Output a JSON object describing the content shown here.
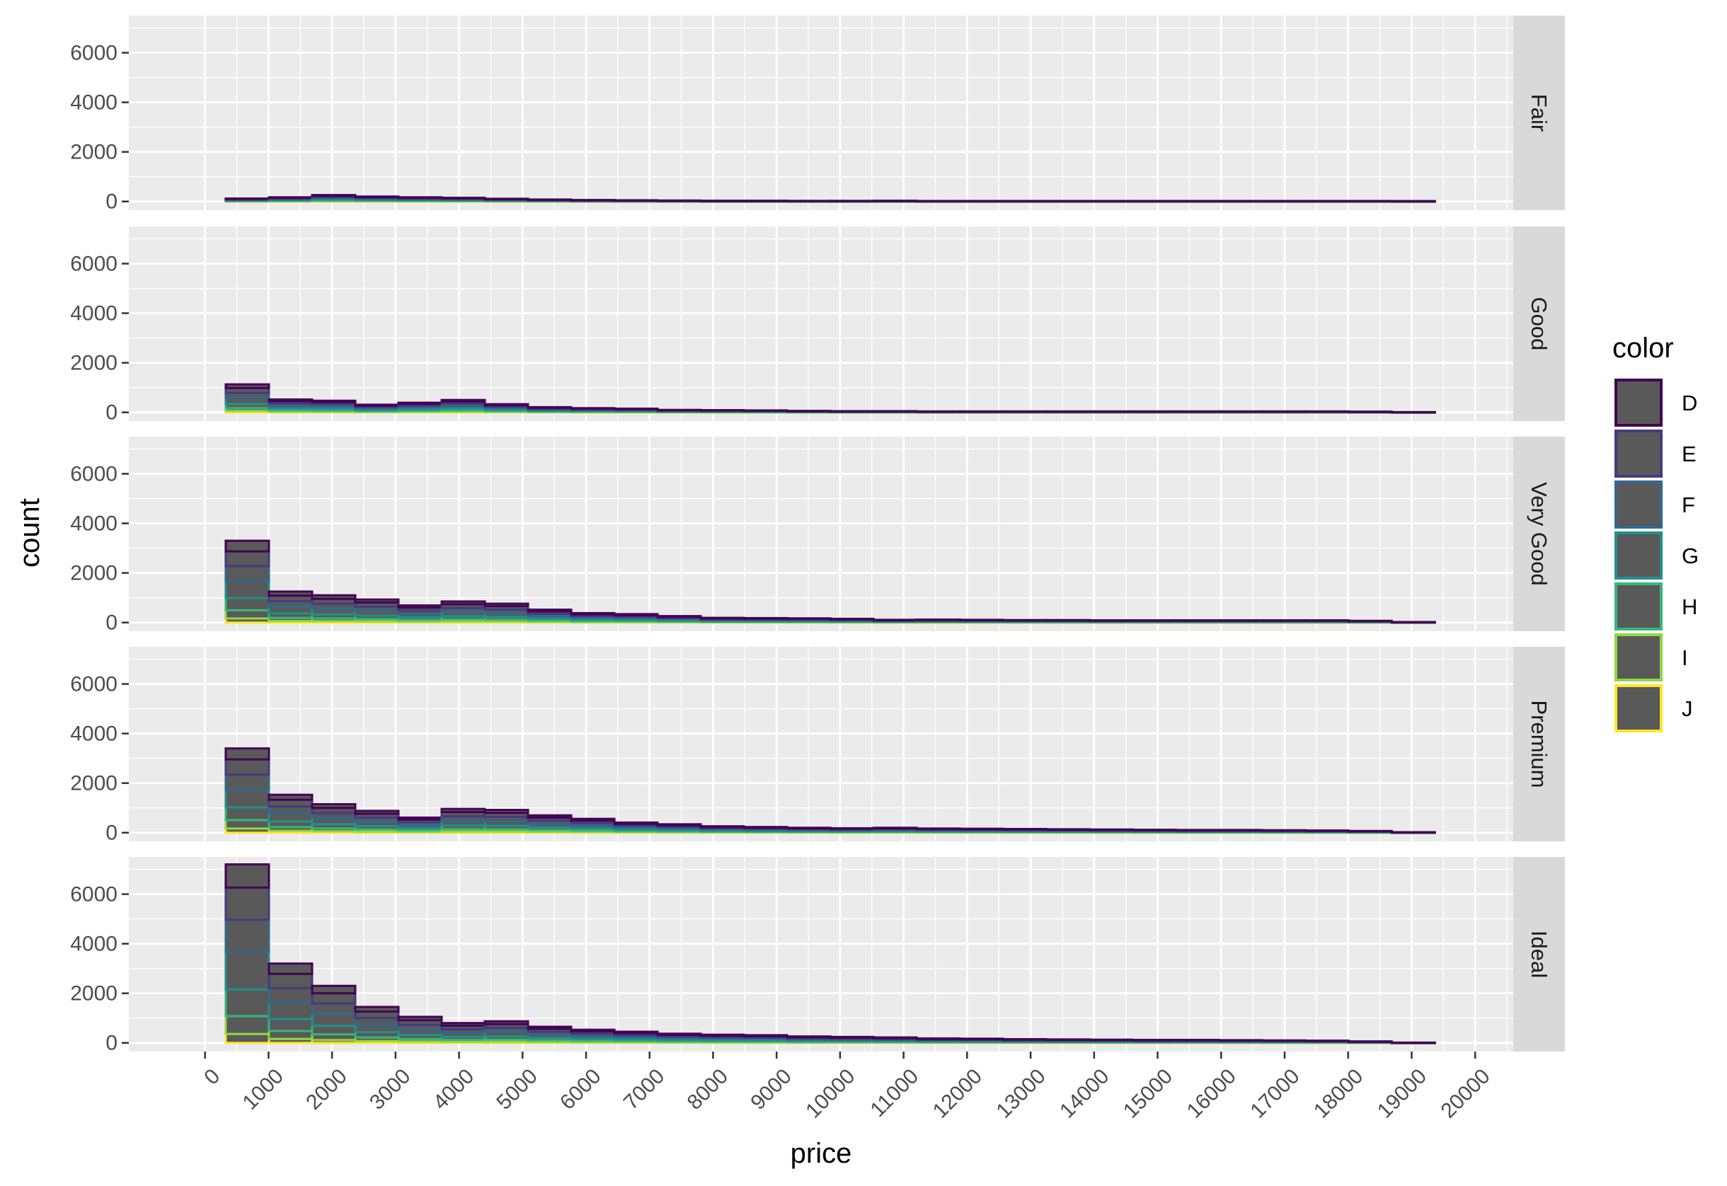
{
  "chart_data": {
    "type": "histogram",
    "variant": "stacked histogram, faceted by cut (rows), bars outlined by color",
    "xlabel": "price",
    "ylabel": "count",
    "x_ticks": [
      0,
      1000,
      2000,
      3000,
      4000,
      5000,
      6000,
      7000,
      8000,
      9000,
      10000,
      11000,
      12000,
      13000,
      14000,
      15000,
      16000,
      17000,
      18000,
      19000,
      20000
    ],
    "y_ticks": [
      0,
      2000,
      4000,
      6000
    ],
    "xlim": [
      -1200,
      20600
    ],
    "ylim": [
      -350,
      7500
    ],
    "bin_width": 680,
    "bin_starts": [
      326,
      1006,
      1686,
      2366,
      3046,
      3726,
      4406,
      5086,
      5766,
      6446,
      7126,
      7806,
      8486,
      9166,
      9846,
      10526,
      11206,
      11886,
      12566,
      13246,
      13926,
      14606,
      15286,
      15966,
      16646,
      17326,
      18006,
      18686
    ],
    "bar_fill": "#595959",
    "panel_background": "#ebebeb",
    "strip_background": "#d9d9d9",
    "grid": true,
    "legend": {
      "title": "color",
      "position": "right",
      "entries": [
        {
          "label": "D",
          "color": "#440154"
        },
        {
          "label": "E",
          "color": "#443a83"
        },
        {
          "label": "F",
          "color": "#31688e"
        },
        {
          "label": "G",
          "color": "#21908c"
        },
        {
          "label": "H",
          "color": "#35b779"
        },
        {
          "label": "I",
          "color": "#8fd744"
        },
        {
          "label": "J",
          "color": "#fde725"
        }
      ]
    },
    "panels": [
      {
        "label": "Fair",
        "totals": [
          120,
          170,
          260,
          200,
          170,
          150,
          110,
          80,
          60,
          50,
          40,
          30,
          30,
          25,
          25,
          30,
          20,
          20,
          20,
          20,
          20,
          20,
          20,
          20,
          20,
          20,
          20,
          15
        ]
      },
      {
        "label": "Good",
        "totals": [
          1130,
          520,
          470,
          310,
          390,
          500,
          330,
          210,
          170,
          150,
          100,
          90,
          80,
          60,
          50,
          50,
          40,
          40,
          40,
          40,
          40,
          40,
          40,
          40,
          40,
          40,
          30,
          10
        ]
      },
      {
        "label": "Very Good",
        "totals": [
          3300,
          1250,
          1100,
          930,
          690,
          850,
          760,
          520,
          380,
          340,
          260,
          190,
          180,
          170,
          150,
          110,
          120,
          110,
          100,
          100,
          90,
          90,
          90,
          90,
          90,
          90,
          70,
          20
        ]
      },
      {
        "label": "Premium",
        "totals": [
          3400,
          1530,
          1150,
          880,
          610,
          960,
          920,
          700,
          560,
          410,
          340,
          260,
          230,
          200,
          180,
          200,
          170,
          160,
          150,
          140,
          130,
          120,
          110,
          110,
          100,
          90,
          70,
          20
        ]
      },
      {
        "label": "Ideal",
        "totals": [
          7200,
          3200,
          2300,
          1450,
          1050,
          800,
          870,
          650,
          530,
          450,
          370,
          330,
          310,
          260,
          240,
          220,
          180,
          170,
          150,
          140,
          130,
          120,
          120,
          110,
          100,
          90,
          60,
          10
        ]
      }
    ],
    "color_proportions": [
      0.13,
      0.18,
      0.18,
      0.21,
      0.15,
      0.1,
      0.05
    ]
  }
}
